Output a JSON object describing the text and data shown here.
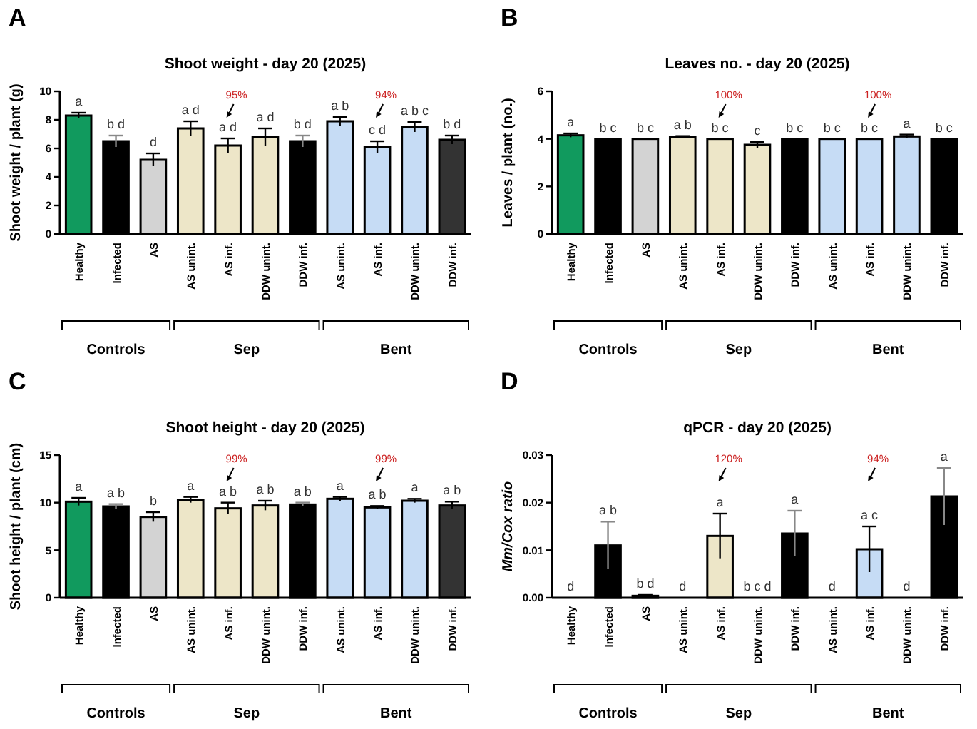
{
  "chart_data": [
    {
      "type": "bar",
      "title": "Shoot weight - day 20 (2025)",
      "ylabel": "Shoot weight / plant (g)",
      "categories": [
        "Healthy",
        "Infected",
        "AS",
        "AS unint.",
        "AS inf.",
        "DDW unint.",
        "DDW inf.",
        "AS unint.",
        "AS inf.",
        "DDW unint.",
        "DDW inf."
      ],
      "values": [
        8.3,
        6.5,
        5.2,
        7.4,
        6.2,
        6.8,
        6.5,
        7.9,
        6.1,
        7.5,
        6.6
      ],
      "errors": [
        0.2,
        0.4,
        0.45,
        0.5,
        0.5,
        0.6,
        0.4,
        0.3,
        0.4,
        0.35,
        0.3
      ],
      "colors": [
        "#119a5e",
        "#000000",
        "#d3d3d3",
        "#ede6c8",
        "#ede6c8",
        "#ede6c8",
        "#000000",
        "#c6dcf5",
        "#c6dcf5",
        "#c6dcf5",
        "#333333"
      ],
      "value_labels": [
        "a",
        "b d",
        "d",
        "a d",
        "a d",
        "a d",
        "b d",
        "a b",
        "c d",
        "a b c",
        "b d"
      ],
      "ylim": [
        0,
        10
      ],
      "yticks": [
        0,
        2,
        4,
        6,
        8,
        10
      ],
      "grid": false,
      "annotations": [
        "A",
        "Controls",
        "Sep",
        "Bent",
        "95%",
        "94%"
      ]
    },
    {
      "type": "bar",
      "title": "Leaves no. - day 20 (2025)",
      "ylabel": "Leaves / plant (no.)",
      "categories": [
        "Healthy",
        "Infected",
        "AS",
        "AS unint.",
        "AS inf.",
        "DDW unint.",
        "DDW inf.",
        "AS unint.",
        "AS inf.",
        "DDW unint.",
        "DDW inf."
      ],
      "values": [
        4.15,
        4.0,
        4.0,
        4.07,
        4.0,
        3.75,
        4.0,
        4.0,
        4.0,
        4.1,
        4.0
      ],
      "errors": [
        0.08,
        null,
        null,
        0.05,
        null,
        0.12,
        null,
        null,
        null,
        0.08,
        null
      ],
      "colors": [
        "#119a5e",
        "#000000",
        "#d3d3d3",
        "#ede6c8",
        "#ede6c8",
        "#ede6c8",
        "#000000",
        "#c6dcf5",
        "#c6dcf5",
        "#c6dcf5",
        "#000000"
      ],
      "value_labels": [
        "a",
        "b c",
        "b c",
        "a b",
        "b c",
        "c",
        "b c",
        "b c",
        "b c",
        "a",
        "b c"
      ],
      "ylim": [
        0,
        6
      ],
      "yticks": [
        0,
        2,
        4,
        6
      ],
      "grid": false,
      "annotations": [
        "B",
        "Controls",
        "Sep",
        "Bent",
        "100%",
        "100%"
      ]
    },
    {
      "type": "bar",
      "title": "Shoot height - day 20 (2025)",
      "ylabel": "Shoot height / plant (cm)",
      "categories": [
        "Healthy",
        "Infected",
        "AS",
        "AS unint.",
        "AS inf.",
        "DDW unint.",
        "DDW inf.",
        "AS unint.",
        "AS inf.",
        "DDW unint.",
        "DDW inf."
      ],
      "values": [
        10.1,
        9.6,
        8.5,
        10.3,
        9.4,
        9.7,
        9.8,
        10.4,
        9.5,
        10.2,
        9.7
      ],
      "errors": [
        0.4,
        0.25,
        0.5,
        0.3,
        0.6,
        0.5,
        0.2,
        0.2,
        0.15,
        0.2,
        0.4
      ],
      "colors": [
        "#119a5e",
        "#000000",
        "#d3d3d3",
        "#ede6c8",
        "#ede6c8",
        "#ede6c8",
        "#000000",
        "#c6dcf5",
        "#c6dcf5",
        "#c6dcf5",
        "#333333"
      ],
      "value_labels": [
        "a",
        "a b",
        "b",
        "a",
        "a b",
        "a b",
        "a b",
        "a",
        "a b",
        "a",
        "a b"
      ],
      "ylim": [
        0,
        15
      ],
      "yticks": [
        0,
        5,
        10,
        15
      ],
      "grid": false,
      "annotations": [
        "C",
        "Controls",
        "Sep",
        "Bent",
        "99%",
        "99%"
      ]
    },
    {
      "type": "bar",
      "title": "qPCR - day 20 (2025)",
      "ylabel": "Mm/Cox ratio",
      "categories": [
        "Healthy",
        "Infected",
        "AS",
        "AS unint.",
        "AS inf.",
        "DDW unint.",
        "DDW inf.",
        "AS unint.",
        "AS inf.",
        "DDW unint.",
        "DDW inf."
      ],
      "values": [
        0,
        0.011,
        0.0004,
        0,
        0.013,
        0,
        0.0135,
        0,
        0.0102,
        0,
        0.0213
      ],
      "errors": [
        null,
        0.005,
        0.0002,
        null,
        0.0047,
        null,
        0.0048,
        null,
        0.0048,
        null,
        0.006
      ],
      "colors": [
        "#119a5e",
        "#000000",
        "#d3d3d3",
        "#ede6c8",
        "#ede6c8",
        "#ede6c8",
        "#000000",
        "#c6dcf5",
        "#c6dcf5",
        "#c6dcf5",
        "#000000"
      ],
      "value_labels": [
        "d",
        "a b",
        "b d",
        "d",
        "a",
        "b c d",
        "a",
        "d",
        "a c",
        "d",
        "a"
      ],
      "ylim": [
        0,
        0.03
      ],
      "yticks": [
        {
          "value": 0,
          "label": "0.00"
        },
        {
          "value": 0.01,
          "label": "0.01"
        },
        {
          "value": 0.02,
          "label": "0.02"
        },
        {
          "value": 0.03,
          "label": "0.03"
        }
      ],
      "grid": false,
      "annotations": [
        "D",
        "Controls",
        "Sep",
        "Bent",
        "120%",
        "94%"
      ]
    }
  ]
}
